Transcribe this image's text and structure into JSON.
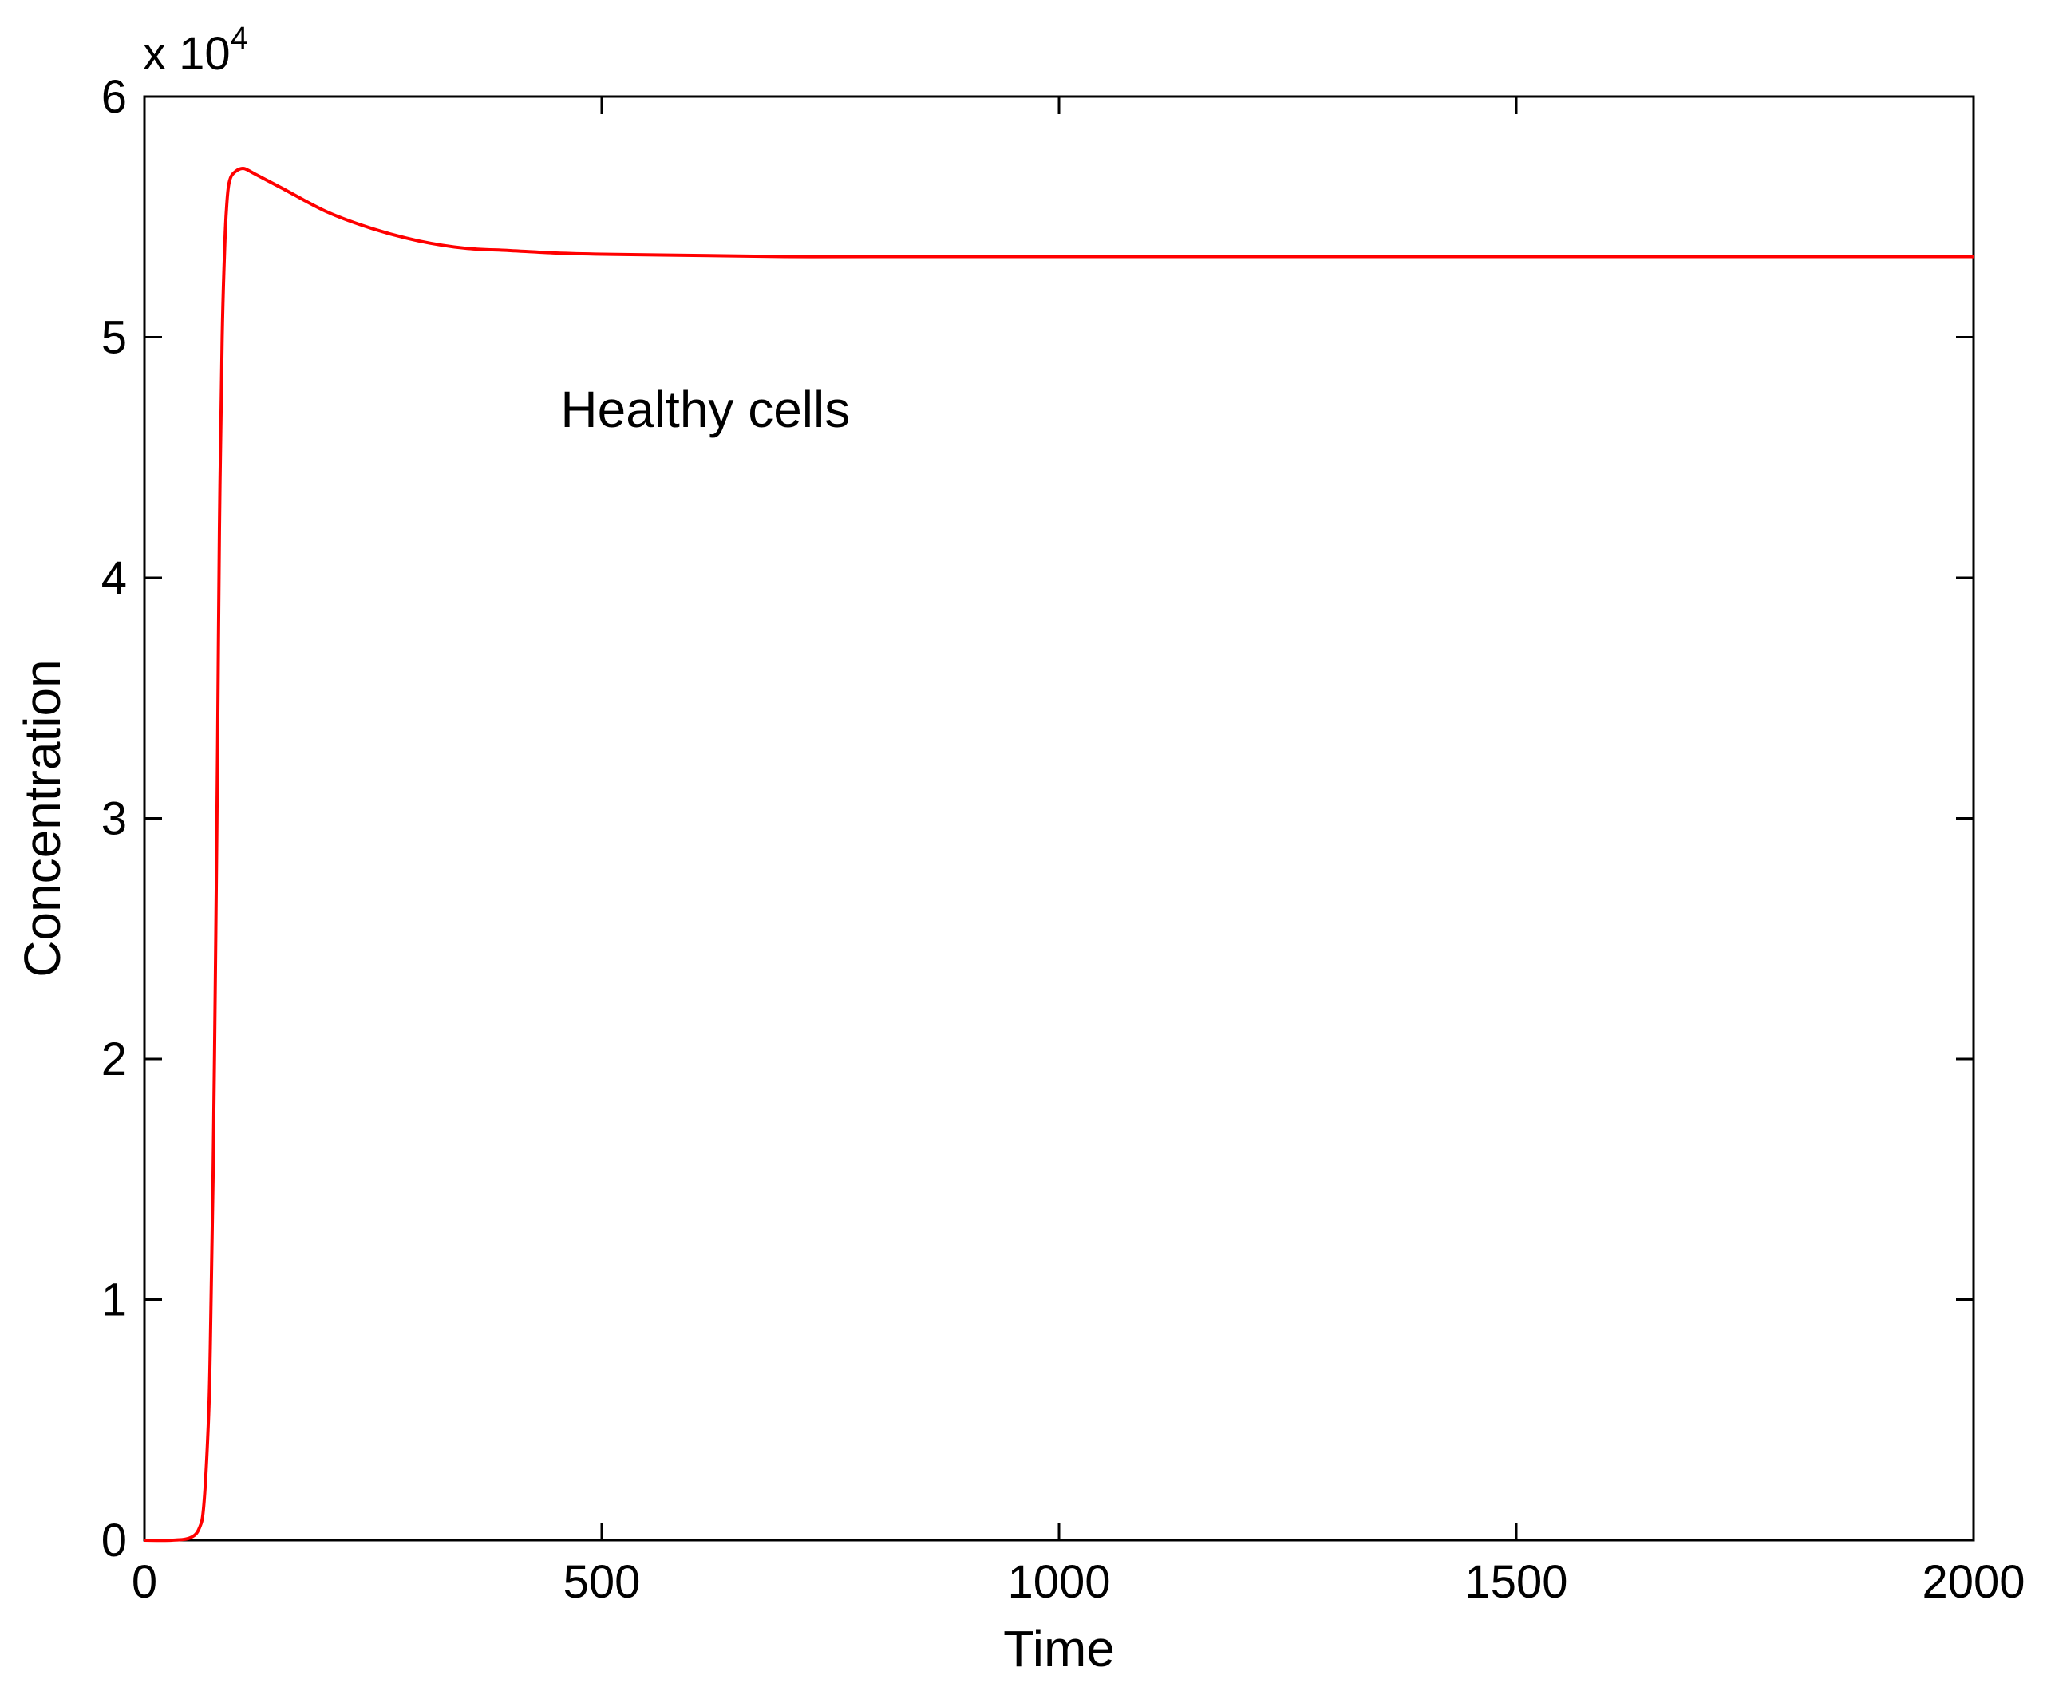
{
  "chart_data": {
    "type": "line",
    "xlabel": "Time",
    "ylabel": "Concentration",
    "xlim": [
      0,
      2000
    ],
    "ylim": [
      0,
      6
    ],
    "x_ticks": [
      "0",
      "500",
      "1000",
      "1500",
      "2000"
    ],
    "y_ticks": [
      "0",
      "1",
      "2",
      "3",
      "4",
      "5",
      "6"
    ],
    "y_multiplier": {
      "base": "x 10",
      "exponent": "4"
    },
    "grid": false,
    "annotation": {
      "text": "Healthy cells",
      "x": 455,
      "y": 4.7
    },
    "series": [
      {
        "color": "#ff0000",
        "x": [
          0,
          30,
          50,
          60,
          65,
          70,
          72,
          75,
          78,
          80,
          82,
          85,
          88,
          90,
          92,
          95,
          100,
          105,
          110,
          120,
          150,
          200,
          250,
          300,
          350,
          400,
          450,
          500,
          600,
          700,
          800,
          1000,
          1500,
          2000
        ],
        "y": [
          0,
          0,
          0.01,
          0.05,
          0.15,
          0.5,
          0.8,
          1.5,
          2.5,
          3.3,
          4.2,
          5.0,
          5.4,
          5.55,
          5.63,
          5.67,
          5.69,
          5.7,
          5.7,
          5.68,
          5.62,
          5.52,
          5.45,
          5.4,
          5.37,
          5.36,
          5.35,
          5.345,
          5.34,
          5.335,
          5.335,
          5.335,
          5.335,
          5.335
        ]
      }
    ]
  }
}
